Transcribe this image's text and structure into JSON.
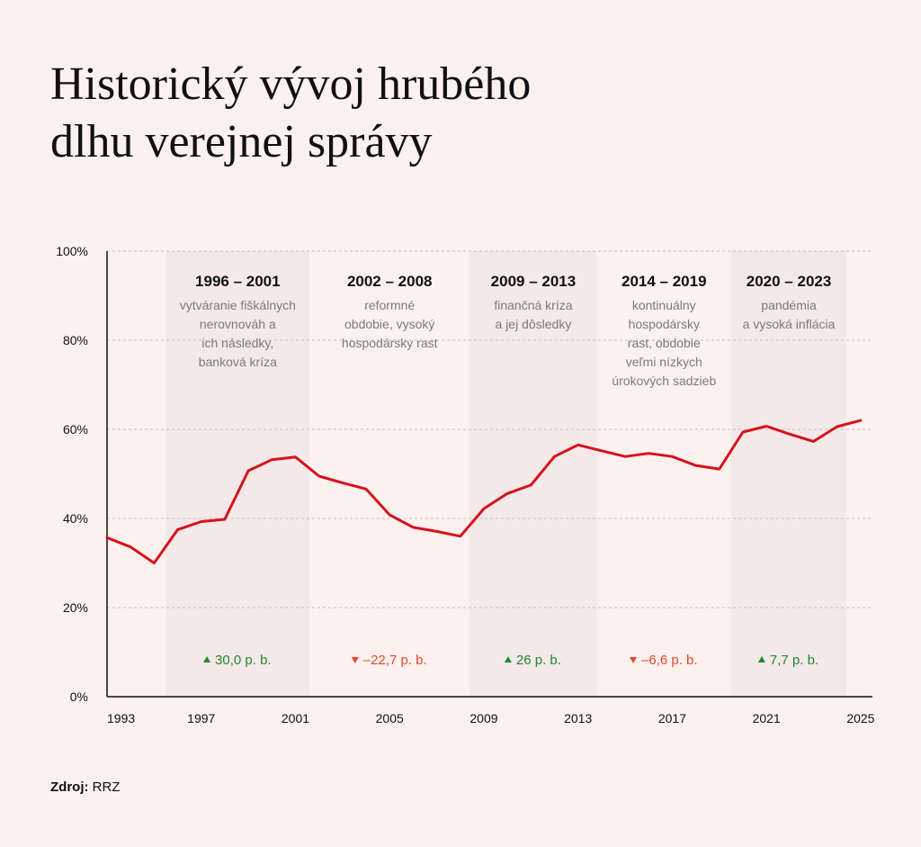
{
  "title_lines": [
    "Historický vývoj hrubého",
    "dlhu verejnej správy"
  ],
  "source": {
    "label": "Zdroj:",
    "value": "RRZ"
  },
  "colors": {
    "background": "#fdf1ef",
    "band": "#f4e9e8",
    "line": "#d7111c",
    "up": "#1d8a2f",
    "down": "#e8462b",
    "grid": "#c9c0bf",
    "annotation": "#7a7a7a"
  },
  "chart_data": {
    "type": "line",
    "title": "Historický vývoj hrubého dlhu verejnej správy",
    "xlabel": "",
    "ylabel": "",
    "xlim": [
      1993,
      2025.5
    ],
    "ylim": [
      0,
      100
    ],
    "y_ticks": [
      0,
      20,
      40,
      60,
      80,
      100
    ],
    "y_tick_labels": [
      "0%",
      "20%",
      "40%",
      "60%",
      "80%",
      "100%"
    ],
    "x_ticks": [
      1993,
      1997,
      2001,
      2005,
      2009,
      2013,
      2017,
      2021,
      2025
    ],
    "x_tick_labels": [
      "1993",
      "1997",
      "2001",
      "2005",
      "2009",
      "2013",
      "2017",
      "2021",
      "2025"
    ],
    "grid": true,
    "series": [
      {
        "x": [
          1993,
          1994,
          1995,
          1996,
          1997,
          1998,
          1999,
          2000,
          2001,
          2002,
          2003,
          2004,
          2005,
          2006,
          2007,
          2008,
          2009,
          2010,
          2011,
          2012,
          2013,
          2014,
          2015,
          2016,
          2017,
          2018,
          2019,
          2020,
          2021,
          2022,
          2023,
          2024,
          2025
        ],
        "values": [
          35.7,
          33.6,
          30.0,
          37.5,
          39.3,
          39.8,
          50.7,
          53.2,
          53.8,
          49.5,
          48.0,
          46.6,
          40.8,
          38.0,
          37.1,
          36.0,
          42.2,
          45.6,
          47.5,
          53.9,
          56.5,
          55.2,
          53.9,
          54.6,
          53.9,
          51.9,
          51.1,
          59.4,
          60.7,
          58.9,
          57.3,
          60.6,
          62.0
        ]
      }
    ],
    "periods": [
      {
        "start": 1995.5,
        "end": 2001.6,
        "shaded": true,
        "title": "1996 – 2001",
        "description": [
          "vytváranie fiškálnych",
          "nerovnováh a",
          "ich následky,",
          "banková kríza"
        ],
        "change": "30,0 p. b.",
        "direction": "up"
      },
      {
        "start": 2001.6,
        "end": 2008.4,
        "shaded": false,
        "title": "2002 – 2008",
        "description": [
          "reformné",
          "obdobie, vysoký",
          "hospodársky rast"
        ],
        "change": "–22,7 p. b.",
        "direction": "down"
      },
      {
        "start": 2008.4,
        "end": 2013.8,
        "shaded": true,
        "title": "2009 – 2013",
        "description": [
          "finančná kríza",
          "a jej dôsledky"
        ],
        "change": "26 p. b.",
        "direction": "up"
      },
      {
        "start": 2013.8,
        "end": 2019.5,
        "shaded": false,
        "title": "2014 – 2019",
        "description": [
          "kontinuálny",
          "hospodársky",
          "rast, obdobie",
          "veľmi nízkych",
          "úrokových sadzieb"
        ],
        "change": "–6,6 p. b.",
        "direction": "down"
      },
      {
        "start": 2019.5,
        "end": 2024.4,
        "shaded": true,
        "title": "2020 – 2023",
        "description": [
          "pandémia",
          "a vysoká inflácia"
        ],
        "change": "7,7 p. b.",
        "direction": "up"
      }
    ]
  }
}
